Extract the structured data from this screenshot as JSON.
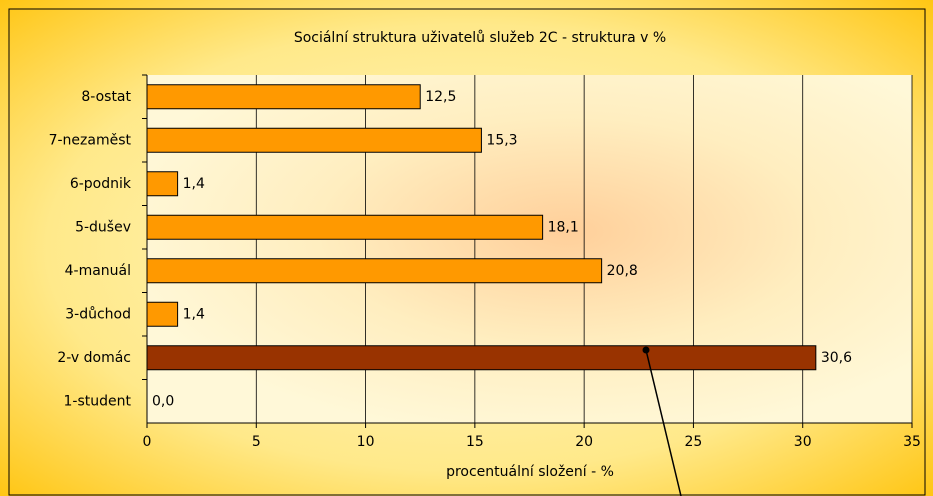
{
  "chart_data": {
    "type": "hbar",
    "title": "Sociální struktura uživatelů služeb 2C - struktura v %",
    "x_label": "procentuální složení - %",
    "categories": [
      "8-ostat",
      "7-nezaměst",
      "6-podnik",
      "5-dušev",
      "4-manuál",
      "3-důchod",
      "2-v domác",
      "1-student"
    ],
    "values": [
      12.5,
      15.3,
      1.4,
      18.1,
      20.8,
      1.4,
      30.6,
      0.0
    ],
    "value_labels": [
      "12,5",
      "15,3",
      "1,4",
      "18,1",
      "20,8",
      "1,4",
      "30,6",
      "0,0"
    ],
    "colors": [
      "#ff9900",
      "#ff9900",
      "#ff9900",
      "#ff9900",
      "#ff9900",
      "#ff9900",
      "#993300",
      "#ff9900"
    ],
    "xlim": [
      0,
      35
    ],
    "xticks": [
      0,
      5,
      10,
      15,
      20,
      25,
      30,
      35
    ],
    "grid": true
  }
}
